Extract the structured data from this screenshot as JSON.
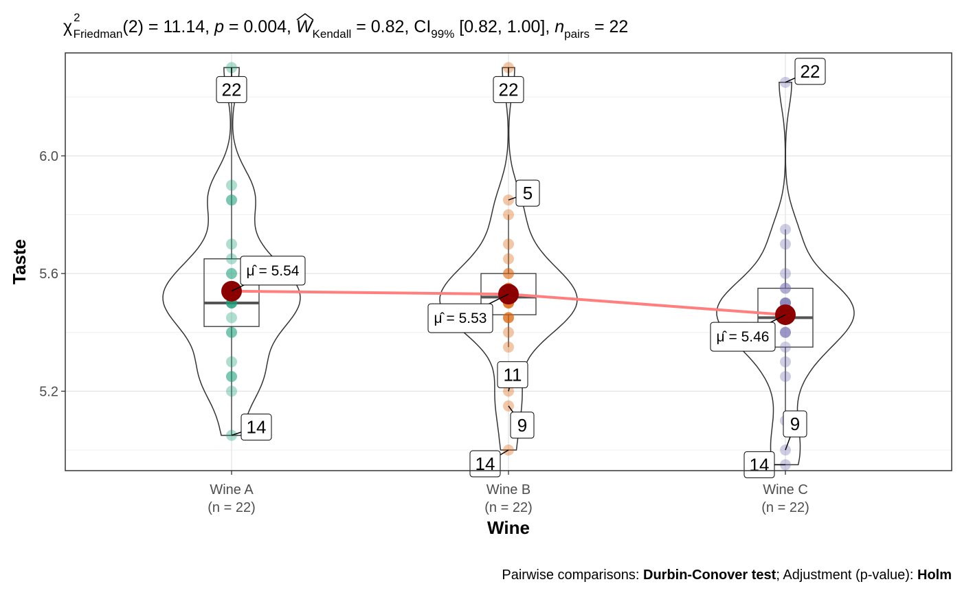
{
  "chart_data": {
    "type": "violin-box-scatter",
    "subtitle": {
      "chi": "χ",
      "chi_sup": "2",
      "chi_sub": "Friedman",
      "stat": "(2) = 11.14, ",
      "p_sym": "p",
      "p_val": " = 0.004, ",
      "w_sym": "W",
      "w_sub": "Kendall",
      "w_val": " = 0.82, CI",
      "ci_sub": "99%",
      "ci_val": " [0.82, 1.00], ",
      "n_sym": "n",
      "n_sub": "pairs",
      "n_val": " = 22"
    },
    "xlabel": "Wine",
    "ylabel": "Taste",
    "ylim": [
      4.93,
      6.35
    ],
    "yticks": [
      5.2,
      5.6,
      6.0
    ],
    "ytick_labels": [
      "5.2",
      "5.6",
      "6.0"
    ],
    "grid": true,
    "caption": {
      "prefix": "Pairwise comparisons: ",
      "test": "Durbin-Conover test",
      "middle": "; Adjustment (p-value): ",
      "method": "Holm"
    },
    "groups": [
      {
        "name": "Wine A",
        "n_label": "(n = 22)",
        "color": "#1b9e77",
        "values": [
          5.4,
          5.5,
          5.55,
          5.85,
          5.5,
          5.55,
          5.45,
          5.5,
          5.6,
          5.3,
          5.7,
          5.6,
          5.25,
          5.05,
          5.9,
          5.65,
          5.85,
          5.25,
          5.2,
          5.4,
          5.5,
          6.3
        ],
        "box": {
          "q1": 5.42,
          "median": 5.5,
          "q3": 5.65,
          "min": 5.05,
          "max": 6.3
        },
        "mean": 5.54,
        "mean_label": "= 5.54",
        "outliers": [
          {
            "id": "22",
            "value": 6.3
          },
          {
            "id": "14",
            "value": 5.05
          }
        ]
      },
      {
        "name": "Wine B",
        "n_label": "(n = 22)",
        "color": "#d95f02",
        "values": [
          5.5,
          5.55,
          5.45,
          5.85,
          5.6,
          5.65,
          5.4,
          5.7,
          5.8,
          5.15,
          5.2,
          5.5,
          5.55,
          5.0,
          5.5,
          5.45,
          5.6,
          5.35,
          5.55,
          5.45,
          5.5,
          6.3
        ],
        "box": {
          "q1": 5.46,
          "median": 5.52,
          "q3": 5.6,
          "min": 5.35,
          "max": 5.8
        },
        "mean": 5.53,
        "mean_label": "= 5.53",
        "outliers": [
          {
            "id": "22",
            "value": 6.3
          },
          {
            "id": "5",
            "value": 5.85
          },
          {
            "id": "11",
            "value": 5.2
          },
          {
            "id": "9",
            "value": 5.15
          },
          {
            "id": "14",
            "value": 5.0
          }
        ]
      },
      {
        "name": "Wine C",
        "n_label": "(n = 22)",
        "color": "#7570b3",
        "values": [
          5.45,
          5.5,
          5.4,
          5.7,
          5.35,
          5.5,
          5.6,
          5.75,
          5.55,
          5.0,
          5.25,
          5.5,
          5.4,
          4.95,
          5.4,
          5.45,
          5.55,
          5.3,
          5.45,
          5.1,
          5.5,
          6.25
        ],
        "box": {
          "q1": 5.35,
          "median": 5.45,
          "q3": 5.55,
          "min": 5.1,
          "max": 5.75
        },
        "mean": 5.46,
        "mean_label": "= 5.46",
        "outliers": [
          {
            "id": "22",
            "value": 6.25
          },
          {
            "id": "9",
            "value": 5.0
          },
          {
            "id": "14",
            "value": 4.95
          }
        ]
      }
    ],
    "mean_line_color": "#ff7f7f",
    "mean_point_color": "#8b0000"
  }
}
